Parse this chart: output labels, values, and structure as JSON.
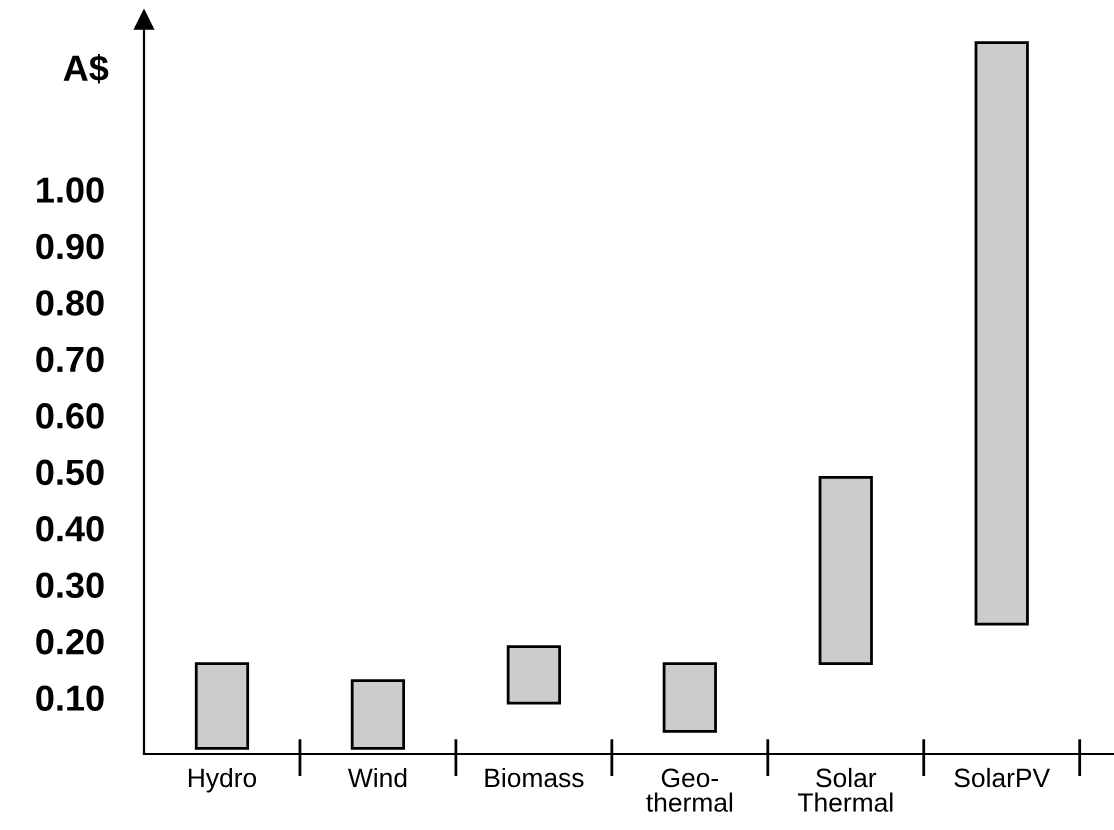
{
  "chart_data": {
    "type": "bar",
    "ylabel": "A$",
    "categories": [
      "Hydro",
      "Wind",
      "Biomass",
      "Geo-\nthermal",
      "Solar\nThermal",
      "SolarPV"
    ],
    "base": [
      0.01,
      0.01,
      0.09,
      0.04,
      0.16,
      0.23
    ],
    "values": [
      0.15,
      0.12,
      0.1,
      0.12,
      0.33,
      1.03
    ],
    "color": "#cccccc",
    "ylim": [
      0,
      1.3
    ],
    "yticks": [
      {
        "value": 0.1,
        "label": "0.10"
      },
      {
        "value": 0.2,
        "label": "0.20"
      },
      {
        "value": 0.3,
        "label": "0.30"
      },
      {
        "value": 0.4,
        "label": "0.40"
      },
      {
        "value": 0.5,
        "label": "0.50"
      },
      {
        "value": 0.6,
        "label": "0.60"
      },
      {
        "value": 0.7,
        "label": "0.70"
      },
      {
        "value": 0.8,
        "label": "0.80"
      },
      {
        "value": 0.9,
        "label": "0.90"
      },
      {
        "value": 1.0,
        "label": "1.00"
      }
    ],
    "grid": false,
    "legend": false
  }
}
